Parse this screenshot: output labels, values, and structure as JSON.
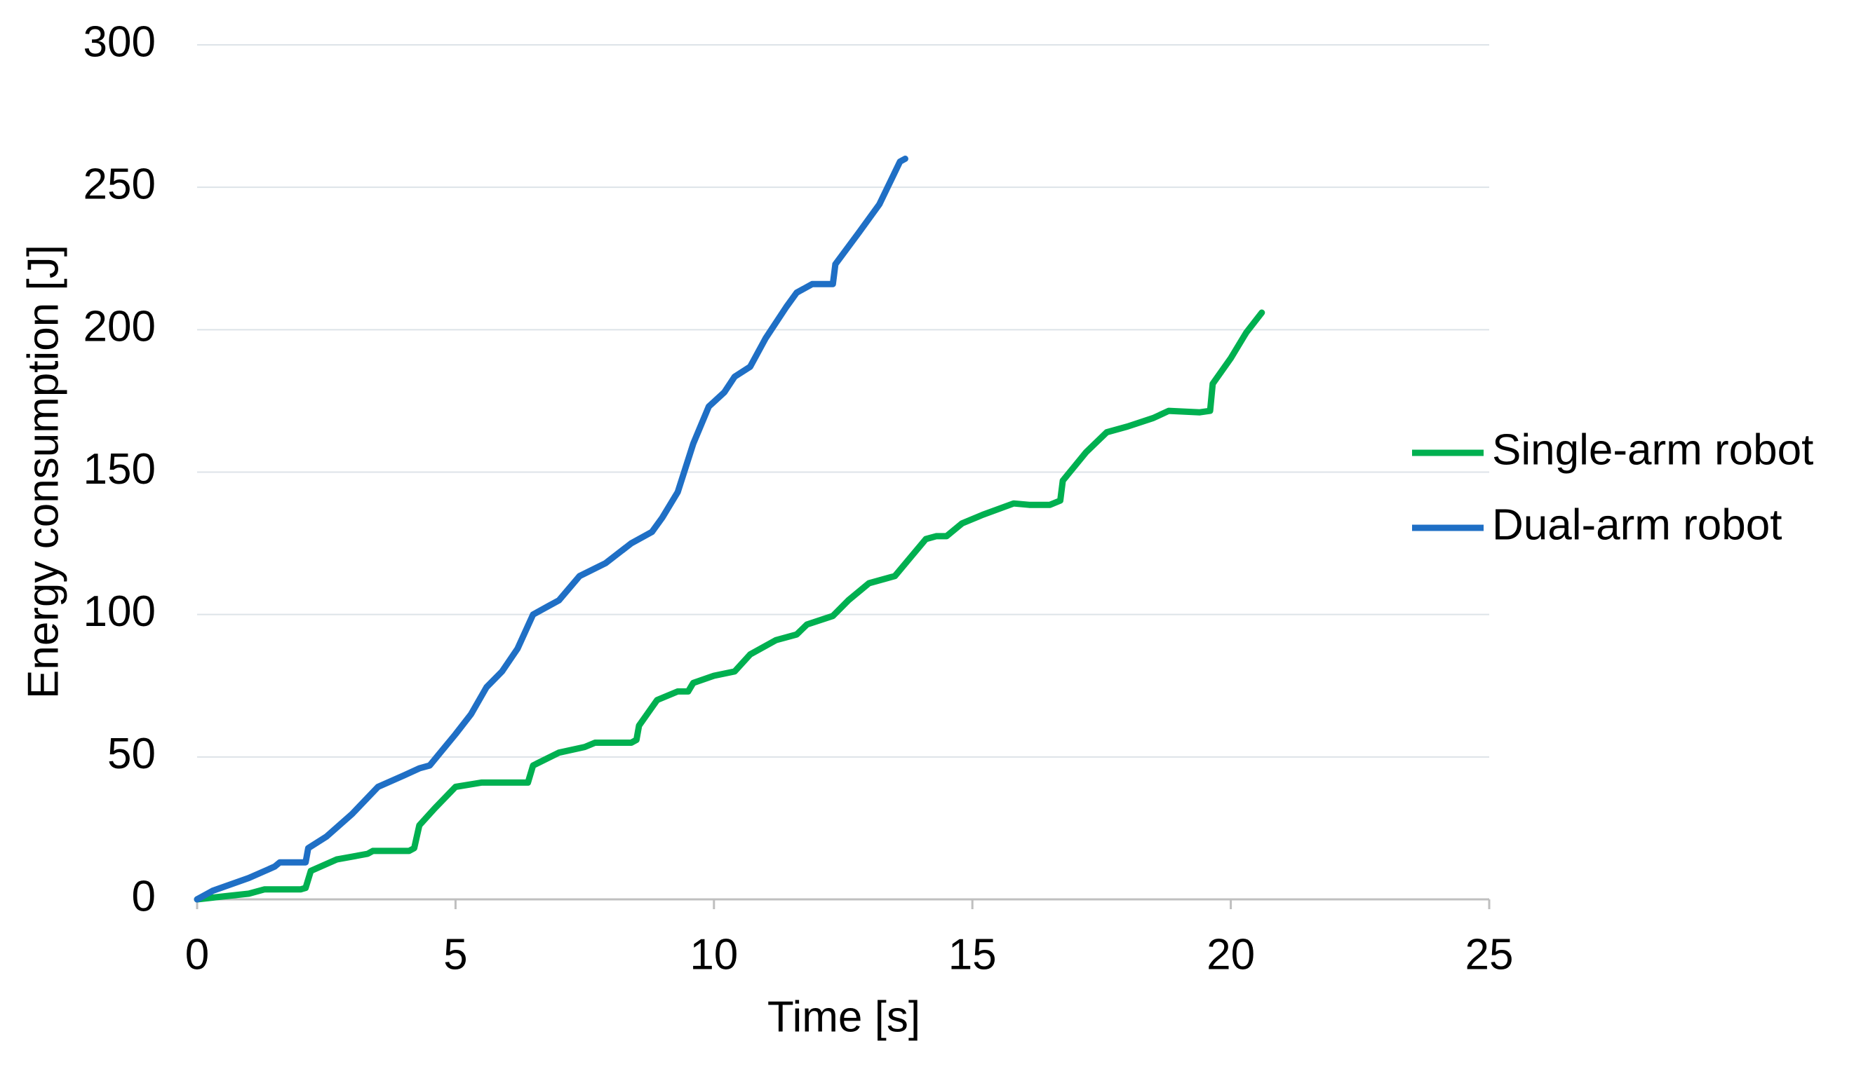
{
  "chart_data": {
    "type": "line",
    "x_label": "Time [s]",
    "y_label": "Energy consumption [J]",
    "xlim": [
      0,
      25
    ],
    "xticks": [
      0,
      5,
      10,
      15,
      20,
      25
    ],
    "ylim": [
      0,
      300
    ],
    "yticks": [
      0,
      50,
      100,
      150,
      200,
      250,
      300
    ],
    "grid": true,
    "legend": "right",
    "series": [
      {
        "name": "Single-arm robot",
        "color": "#00b050",
        "x": [
          0,
          0.5,
          1,
          1.3,
          2,
          2.1,
          2.2,
          2.7,
          3.3,
          3.4,
          4.1,
          4.2,
          4.3,
          4.6,
          5,
          5.5,
          6.1,
          6.4,
          6.5,
          7,
          7.5,
          7.7,
          8.4,
          8.5,
          8.55,
          8.9,
          9.3,
          9.5,
          9.6,
          10,
          10.4,
          10.7,
          11.2,
          11.6,
          11.8,
          12.3,
          12.6,
          13,
          13.3,
          13.5,
          13.8,
          14.1,
          14.3,
          14.5,
          14.8,
          15.2,
          15.8,
          16.1,
          16.5,
          16.7,
          16.75,
          17.2,
          17.6,
          18,
          18.5,
          18.8,
          19.4,
          19.6,
          19.65,
          20,
          20.3,
          20.6
        ],
        "values": [
          0,
          1,
          2,
          3.5,
          3.5,
          4,
          10,
          14,
          16,
          17,
          17,
          18,
          26,
          32,
          39.5,
          41,
          41,
          41,
          47,
          51.5,
          53.5,
          55,
          55,
          56,
          61,
          70,
          73,
          73,
          76,
          78.5,
          80,
          86,
          91,
          93,
          96.5,
          99.5,
          105,
          111,
          112.5,
          113.5,
          120,
          126.5,
          127.5,
          127.5,
          132,
          135,
          139,
          138.5,
          138.5,
          140,
          147,
          157,
          164,
          166,
          169,
          171.5,
          171,
          171.5,
          181,
          190,
          199,
          206
        ]
      },
      {
        "name": "Dual-arm robot",
        "color": "#1f6fc5",
        "x": [
          0,
          0.3,
          1,
          1.5,
          1.6,
          2.1,
          2.15,
          2.5,
          3,
          3.5,
          4,
          4.3,
          4.5,
          5,
          5.3,
          5.6,
          5.9,
          6.2,
          6.5,
          6.8,
          7,
          7.4,
          7.9,
          8.4,
          8.8,
          9,
          9.3,
          9.6,
          9.9,
          10.2,
          10.4,
          10.7,
          11,
          11.4,
          11.6,
          11.9,
          12.3,
          12.35,
          12.8,
          13.2,
          13.6,
          13.7
        ],
        "values": [
          0,
          3,
          7.5,
          11.5,
          13,
          13,
          18,
          22,
          30,
          39.5,
          43.5,
          46,
          47,
          58,
          65,
          74.5,
          80,
          88,
          100,
          103,
          105,
          113.5,
          118,
          125,
          129,
          134,
          143,
          160,
          173,
          178,
          183.5,
          187,
          197,
          208,
          213,
          216,
          216,
          223,
          234,
          244,
          259,
          260
        ]
      }
    ]
  }
}
